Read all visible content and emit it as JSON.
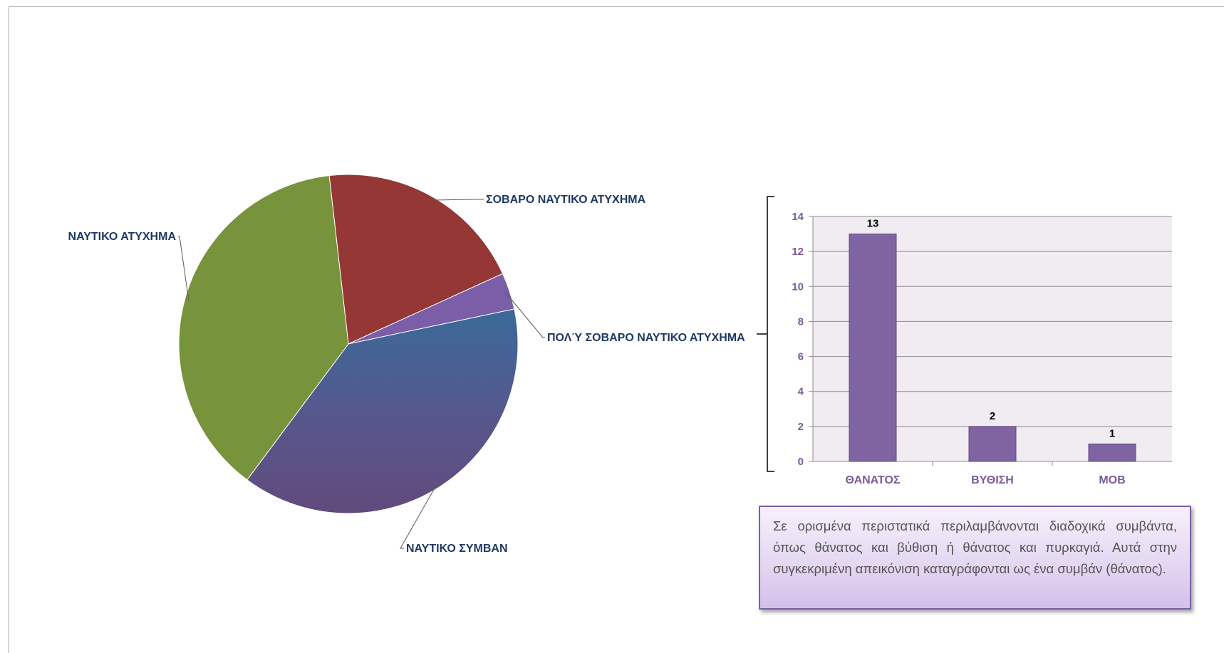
{
  "chart_data": [
    {
      "type": "pie",
      "title": "",
      "slices": [
        {
          "label": "ΣΟΒΑΡΟ ΝΑΥΤΙΚΟ ΑΤΥΧΗΜΑ",
          "value": 20,
          "color": "#953735"
        },
        {
          "label": "ΠΟΛΎ ΣΟΒΑΡΟ ΝΑΥΤΙΚΟ ΑΤΥΧΗΜΑ",
          "value": 3.5,
          "color": "#7b5ea7"
        },
        {
          "label": "ΝΑΥΤΙΚΟ ΣΥΜΒΑΝ",
          "value": 38.5,
          "color": "#4a5a91"
        },
        {
          "label": "ΝΑΥΤΙΚΟ ΑΤΥΧΗΜΑ",
          "value": 38,
          "color": "#77933c"
        }
      ],
      "legend": "none"
    },
    {
      "type": "bar",
      "title": "",
      "categories": [
        "ΘΑΝΑΤΟΣ",
        "ΒΥΘΙΣΗ",
        "MOB"
      ],
      "values": [
        13,
        2,
        1
      ],
      "xlabel": "",
      "ylabel": "",
      "ylim": [
        0,
        14
      ],
      "yticks": [
        0,
        2,
        4,
        6,
        8,
        10,
        12,
        14
      ],
      "grid": true,
      "bar_color": "#8064a2",
      "plot_background": "#f0ecf2"
    }
  ],
  "note": {
    "text": "Σε ορισμένα περιστατικά περιλαμβάνονται διαδοχικά συμβάντα, όπως θάνατος και βύθιση ή θάνατος και πυρκαγιά. Αυτά στην συγκεκριμένη απεικόνιση καταγράφονται ως ένα συμβάν (θάνατος)."
  }
}
